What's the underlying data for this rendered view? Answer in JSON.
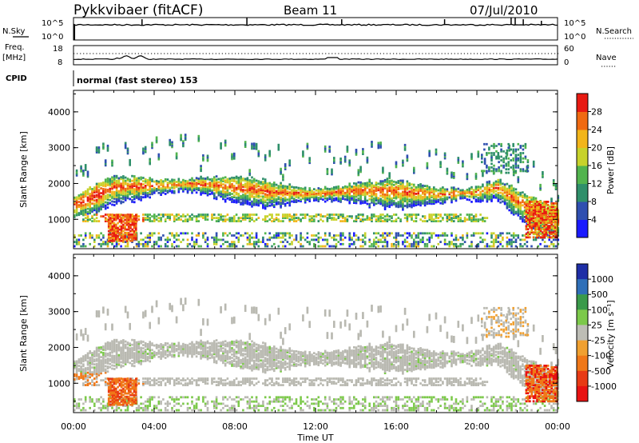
{
  "header": {
    "station": "Pykkvibaer (fitACF)",
    "beam": "Beam 11",
    "date": "07/Jul/2010"
  },
  "panels": {
    "noise": {
      "left_label": "N.Sky",
      "right_label": "N.Search",
      "ticks_left": [
        "10^5",
        "10^0"
      ],
      "ticks_right": [
        "10^5",
        "10^0"
      ]
    },
    "freq": {
      "left_label_1": "Freq.",
      "left_label_2": "[MHz]",
      "ticks_left": [
        "18",
        "8"
      ],
      "right_label": "Nave",
      "ticks_right": [
        "60",
        "0"
      ]
    },
    "cpid": {
      "label": "CPID",
      "text": "normal (fast stereo) 153"
    }
  },
  "chart_data": [
    {
      "type": "heatmap",
      "name": "power",
      "ylabel": "Slant Range [km]",
      "yticks": [
        "1000",
        "2000",
        "3000",
        "4000"
      ],
      "ylim": [
        180,
        4600
      ],
      "x_range_hours": [
        0,
        24
      ],
      "colorbar": {
        "label": "Power [dB]",
        "ticks": [
          "4",
          "8",
          "12",
          "16",
          "20",
          "24",
          "28"
        ],
        "range": [
          0,
          32
        ]
      },
      "echo_band_center_km": [
        [
          0,
          1400
        ],
        [
          1,
          1650
        ],
        [
          2,
          1900
        ],
        [
          4,
          1950
        ],
        [
          6,
          2000
        ],
        [
          8,
          1900
        ],
        [
          10,
          1750
        ],
        [
          12,
          1720
        ],
        [
          14,
          1800
        ],
        [
          16,
          1780
        ],
        [
          18,
          1700
        ],
        [
          20,
          1750
        ],
        [
          21,
          1900
        ],
        [
          22,
          1500
        ],
        [
          23,
          1200
        ],
        [
          24,
          1000
        ]
      ]
    },
    {
      "type": "heatmap",
      "name": "velocity",
      "ylabel": "Slant Range [km]",
      "yticks": [
        "1000",
        "2000",
        "3000",
        "4000"
      ],
      "ylim": [
        180,
        4600
      ],
      "x_range_hours": [
        0,
        24
      ],
      "colorbar": {
        "label": "Velocity [m s⁻¹]",
        "ticks": [
          "1000",
          "500",
          "100",
          "25",
          "-25",
          "-100",
          "-500",
          "-1000"
        ]
      }
    }
  ],
  "x_axis": {
    "ticks": [
      "00:00",
      "04:00",
      "08:00",
      "12:00",
      "16:00",
      "20:00",
      "00:00"
    ],
    "label": "Time UT"
  },
  "colors": {
    "power_scale": [
      "#1a1aff",
      "#2f4fb0",
      "#2f8f6a",
      "#52b44e",
      "#c7d22b",
      "#f2b51a",
      "#f06a12",
      "#e81a12"
    ],
    "velocity_scale": [
      "#1e2ea6",
      "#2f6fb8",
      "#3a9a4a",
      "#7cc94a",
      "#bdbdb5",
      "#f0a030",
      "#f07818",
      "#e83a14",
      "#e81212"
    ],
    "ground_scatter": "#b9b9b1"
  }
}
